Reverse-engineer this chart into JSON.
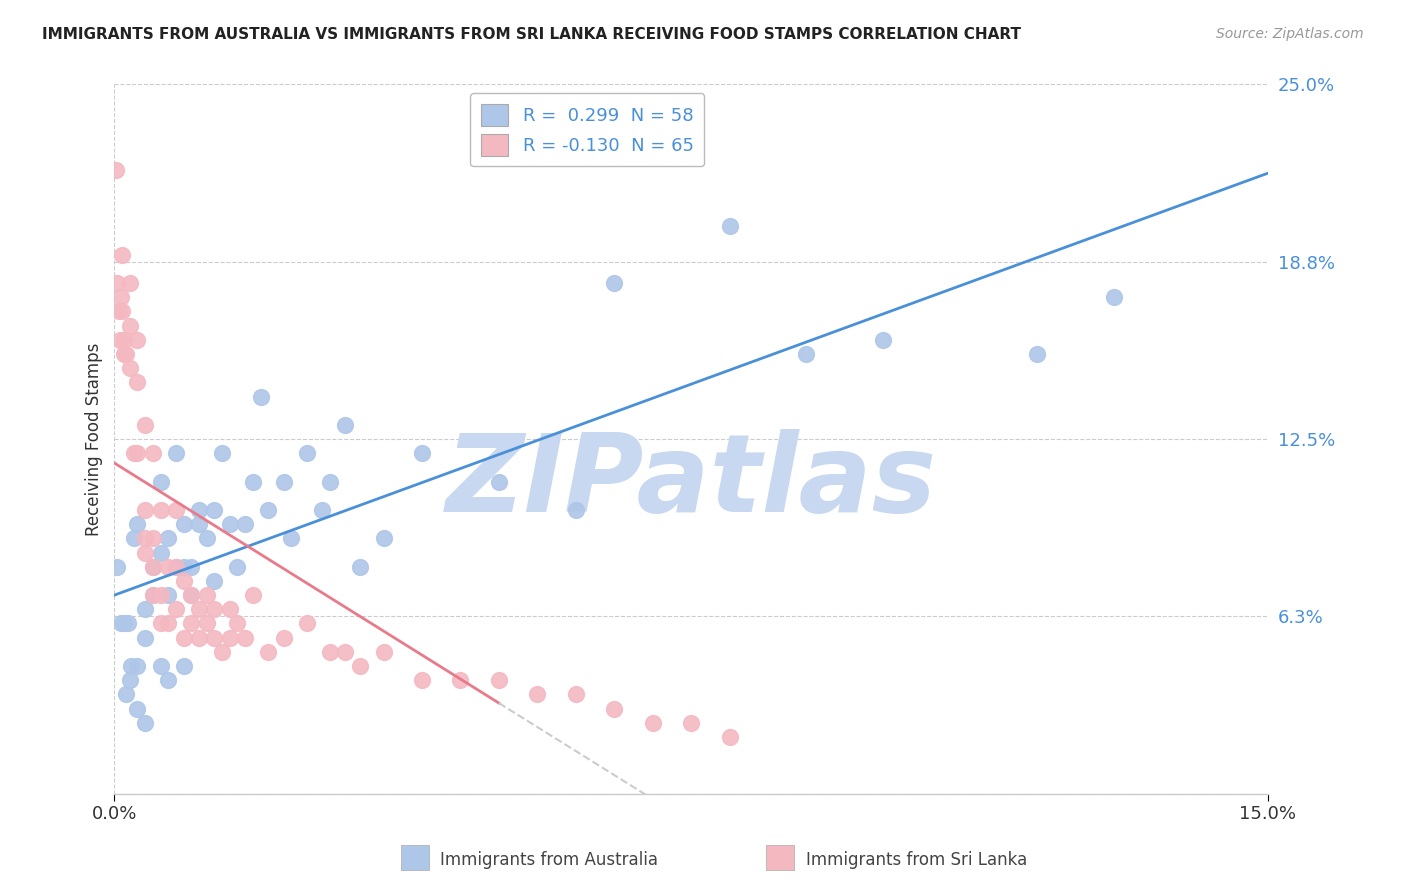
{
  "title": "IMMIGRANTS FROM AUSTRALIA VS IMMIGRANTS FROM SRI LANKA RECEIVING FOOD STAMPS CORRELATION CHART",
  "source": "Source: ZipAtlas.com",
  "ylabel": "Receiving Food Stamps",
  "x_min": 0.0,
  "x_max": 0.15,
  "y_min": 0.0,
  "y_max": 0.25,
  "y_ticks": [
    0.0,
    0.0625,
    0.125,
    0.1875,
    0.25
  ],
  "y_tick_labels": [
    "",
    "6.3%",
    "12.5%",
    "18.8%",
    "25.0%"
  ],
  "australia_color": "#aec6e8",
  "srilanka_color": "#f4b8c1",
  "australia_line_color": "#4a90d9",
  "srilanka_line_color": "#e87a8a",
  "watermark": "ZIPatlas",
  "watermark_color": "#c8d8f0",
  "legend_R_aus": "0.299",
  "legend_N_aus": "58",
  "legend_R_slk": "-0.130",
  "legend_N_slk": "65",
  "legend_label_aus": "Immigrants from Australia",
  "legend_label_slk": "Immigrants from Sri Lanka",
  "australia_x": [
    0.0004,
    0.0008,
    0.0012,
    0.0015,
    0.0018,
    0.002,
    0.0022,
    0.0025,
    0.003,
    0.003,
    0.003,
    0.004,
    0.004,
    0.004,
    0.005,
    0.005,
    0.006,
    0.006,
    0.006,
    0.007,
    0.007,
    0.007,
    0.008,
    0.008,
    0.009,
    0.009,
    0.009,
    0.01,
    0.01,
    0.011,
    0.011,
    0.012,
    0.013,
    0.013,
    0.014,
    0.015,
    0.016,
    0.017,
    0.018,
    0.019,
    0.02,
    0.022,
    0.023,
    0.025,
    0.027,
    0.028,
    0.03,
    0.032,
    0.035,
    0.04,
    0.05,
    0.06,
    0.065,
    0.08,
    0.09,
    0.1,
    0.12,
    0.13
  ],
  "australia_y": [
    0.08,
    0.06,
    0.06,
    0.035,
    0.06,
    0.04,
    0.045,
    0.09,
    0.03,
    0.045,
    0.095,
    0.025,
    0.055,
    0.065,
    0.07,
    0.08,
    0.045,
    0.085,
    0.11,
    0.04,
    0.07,
    0.09,
    0.08,
    0.12,
    0.045,
    0.08,
    0.095,
    0.07,
    0.08,
    0.095,
    0.1,
    0.09,
    0.075,
    0.1,
    0.12,
    0.095,
    0.08,
    0.095,
    0.11,
    0.14,
    0.1,
    0.11,
    0.09,
    0.12,
    0.1,
    0.11,
    0.13,
    0.08,
    0.09,
    0.12,
    0.11,
    0.1,
    0.18,
    0.2,
    0.155,
    0.16,
    0.155,
    0.175
  ],
  "srilanka_x": [
    0.0002,
    0.0004,
    0.0006,
    0.0007,
    0.0008,
    0.001,
    0.001,
    0.0012,
    0.0013,
    0.0015,
    0.002,
    0.002,
    0.002,
    0.0025,
    0.003,
    0.003,
    0.003,
    0.004,
    0.004,
    0.004,
    0.004,
    0.005,
    0.005,
    0.005,
    0.005,
    0.006,
    0.006,
    0.006,
    0.007,
    0.007,
    0.008,
    0.008,
    0.008,
    0.009,
    0.009,
    0.01,
    0.01,
    0.011,
    0.011,
    0.012,
    0.012,
    0.013,
    0.013,
    0.014,
    0.015,
    0.015,
    0.016,
    0.017,
    0.018,
    0.02,
    0.022,
    0.025,
    0.028,
    0.03,
    0.032,
    0.035,
    0.04,
    0.045,
    0.05,
    0.055,
    0.06,
    0.065,
    0.07,
    0.075,
    0.08
  ],
  "srilanka_y": [
    0.22,
    0.18,
    0.17,
    0.16,
    0.175,
    0.17,
    0.19,
    0.155,
    0.16,
    0.155,
    0.15,
    0.165,
    0.18,
    0.12,
    0.12,
    0.145,
    0.16,
    0.085,
    0.09,
    0.1,
    0.13,
    0.07,
    0.08,
    0.09,
    0.12,
    0.06,
    0.07,
    0.1,
    0.06,
    0.08,
    0.065,
    0.08,
    0.1,
    0.055,
    0.075,
    0.06,
    0.07,
    0.055,
    0.065,
    0.06,
    0.07,
    0.055,
    0.065,
    0.05,
    0.055,
    0.065,
    0.06,
    0.055,
    0.07,
    0.05,
    0.055,
    0.06,
    0.05,
    0.05,
    0.045,
    0.05,
    0.04,
    0.04,
    0.04,
    0.035,
    0.035,
    0.03,
    0.025,
    0.025,
    0.02
  ],
  "srilanka_line_solid_end": 0.05,
  "grid_color": "#cccccc",
  "spine_color": "#cccccc",
  "title_fontsize": 11,
  "tick_fontsize": 13,
  "ylabel_fontsize": 12,
  "source_color": "#999999",
  "label_color": "#4a90d9",
  "title_color": "#222222"
}
